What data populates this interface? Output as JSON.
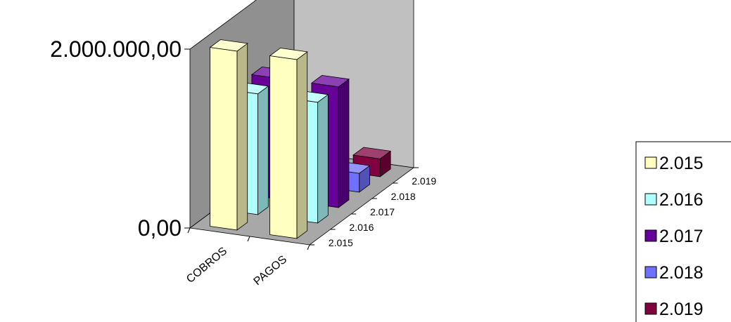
{
  "chart_data": {
    "type": "bar",
    "categories": [
      "COBROS",
      "PAGOS"
    ],
    "depth_labels": [
      "2.015",
      "2.016",
      "2.017",
      "2.018",
      "2.019"
    ],
    "series": [
      {
        "name": "2.015",
        "values": [
          2000000,
          2000000
        ]
      },
      {
        "name": "2.016",
        "values": [
          1350000,
          1350000
        ]
      },
      {
        "name": "2.017",
        "values": [
          1350000,
          1350000
        ]
      },
      {
        "name": "2.018",
        "values": [
          0,
          210000
        ]
      },
      {
        "name": "2.019",
        "values": [
          0,
          200000
        ]
      }
    ],
    "ylim": [
      0,
      2000000
    ],
    "ytick_labels": [
      "0,00",
      "2.000.000,00"
    ],
    "legend_position": "right",
    "colors": {
      "2.015": "#ffffc0",
      "2.016": "#b0ffff",
      "2.017": "#660099",
      "2.018": "#7070ff",
      "2.019": "#800040",
      "back_wall": "#c0c0c0",
      "side_wall": "#909090",
      "floor": "#a8a8a8"
    }
  }
}
